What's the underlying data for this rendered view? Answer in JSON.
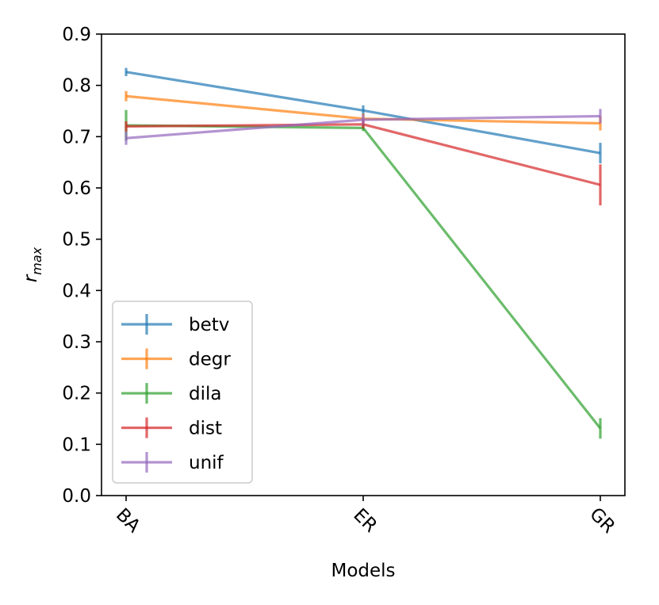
{
  "chart_data": {
    "type": "line",
    "title": "",
    "xlabel": "Models",
    "ylabel_main": "r",
    "ylabel_sub": "max",
    "categories": [
      "BA",
      "ER",
      "GR"
    ],
    "ylim": [
      0.0,
      0.9
    ],
    "yticks": [
      "0.0",
      "0.1",
      "0.2",
      "0.3",
      "0.4",
      "0.5",
      "0.6",
      "0.7",
      "0.8",
      "0.9"
    ],
    "legend_position": "lower-left",
    "series": [
      {
        "name": "betv",
        "color": "#1f77b4",
        "values": [
          0.826,
          0.751,
          0.668
        ],
        "errors": [
          0.008,
          0.01,
          0.02
        ]
      },
      {
        "name": "degr",
        "color": "#ff7f0e",
        "values": [
          0.779,
          0.735,
          0.726
        ],
        "errors": [
          0.01,
          0.01,
          0.014
        ]
      },
      {
        "name": "dila",
        "color": "#2ca02c",
        "values": [
          0.722,
          0.717,
          0.131
        ],
        "errors": [
          0.03,
          0.006,
          0.02
        ]
      },
      {
        "name": "dist",
        "color": "#d62728",
        "values": [
          0.72,
          0.724,
          0.606
        ],
        "errors": [
          0.01,
          0.008,
          0.04
        ]
      },
      {
        "name": "unif",
        "color": "#9467bd",
        "values": [
          0.697,
          0.733,
          0.74
        ],
        "errors": [
          0.013,
          0.01,
          0.014
        ]
      }
    ]
  }
}
